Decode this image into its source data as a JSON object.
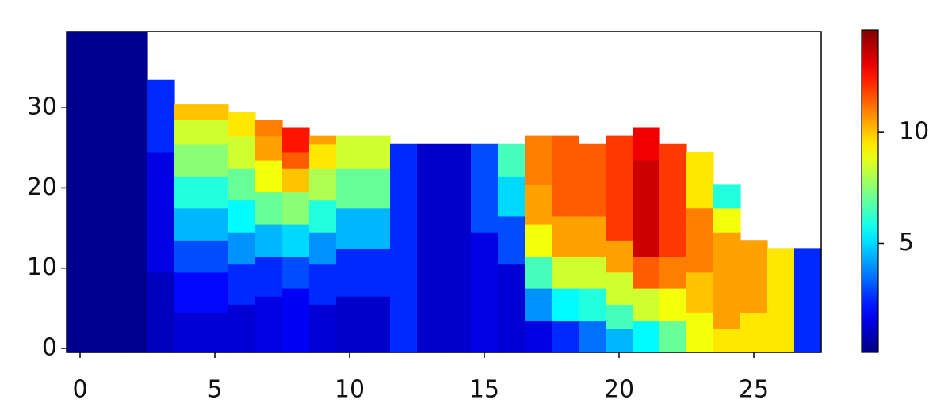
{
  "chart_data": {
    "type": "heatmap",
    "colormap": "jet",
    "x": [
      0,
      1,
      2,
      3,
      4,
      5,
      6,
      7,
      8,
      9,
      10,
      11,
      12,
      13,
      14,
      15,
      16,
      17,
      18,
      19,
      20,
      21,
      22,
      23,
      24,
      25,
      26,
      27
    ],
    "y": [
      0,
      1,
      2,
      3,
      4,
      5,
      6,
      7,
      8,
      9,
      10,
      11,
      12,
      13,
      14,
      15,
      16,
      17,
      18,
      19,
      20,
      21,
      22,
      23,
      24,
      25,
      26,
      27,
      28,
      29,
      30,
      31,
      32,
      33,
      34,
      35,
      36,
      37,
      38,
      39
    ],
    "columns": [
      [
        0.3,
        0.3,
        0.3,
        0.3,
        0.3,
        0.3,
        0.3,
        0.3,
        0.3,
        0.3,
        0.3,
        0.3,
        0.3,
        0.3,
        0.3,
        0.3,
        0.3,
        0.3,
        0.3,
        0.3,
        0.3,
        0.3,
        0.3,
        0.3,
        0.3,
        0.3,
        0.3,
        0.3,
        0.3,
        0.3,
        0.3,
        0.3,
        0.3,
        0.3,
        0.3,
        0.3,
        0.3,
        0.3,
        0.3,
        0.3
      ],
      [
        0.3,
        0.3,
        0.3,
        0.3,
        0.3,
        0.3,
        0.3,
        0.3,
        0.3,
        0.3,
        0.3,
        0.3,
        0.3,
        0.3,
        0.3,
        0.3,
        0.3,
        0.3,
        0.3,
        0.3,
        0.3,
        0.3,
        0.3,
        0.3,
        0.3,
        0.3,
        0.3,
        0.3,
        0.3,
        0.3,
        0.3,
        0.3,
        0.3,
        0.3,
        0.3,
        0.3,
        0.3,
        0.3,
        0.3,
        0.3
      ],
      [
        0.3,
        0.3,
        0.3,
        0.3,
        0.3,
        0.3,
        0.3,
        0.3,
        0.3,
        0.3,
        0.3,
        0.3,
        0.3,
        0.3,
        0.3,
        0.3,
        0.3,
        0.3,
        0.3,
        0.3,
        0.3,
        0.3,
        0.3,
        0.3,
        0.3,
        0.3,
        0.3,
        0.3,
        0.3,
        0.3,
        0.3,
        0.3,
        0.3,
        0.3,
        0.3,
        0.3,
        0.3,
        0.3,
        0.3,
        0.3
      ],
      [
        1,
        1,
        1,
        1,
        1,
        1,
        1,
        1,
        1,
        1,
        1.5,
        1.5,
        1.5,
        1.5,
        1.5,
        1.5,
        1.5,
        1.5,
        1.5,
        1.5,
        1.5,
        1.5,
        1.5,
        1.5,
        1.5,
        2.5,
        2.5,
        2.5,
        2.5,
        2.5,
        2.5,
        2.5,
        2.5,
        2.5
      ],
      [
        1.3,
        1.3,
        1.3,
        1.3,
        1.3,
        2,
        2,
        2,
        2,
        2,
        3,
        3,
        3,
        3,
        4.5,
        4.5,
        4.5,
        4.5,
        6,
        6,
        6,
        6,
        7.5,
        7.5,
        7.5,
        7.5,
        8.5,
        8.5,
        8.5,
        10,
        10
      ],
      [
        1.3,
        1.3,
        1.3,
        1.3,
        1.3,
        2,
        2,
        2,
        2,
        2,
        3,
        3,
        3,
        3,
        4.5,
        4.5,
        4.5,
        4.5,
        6,
        6,
        6,
        6,
        7.5,
        7.5,
        7.5,
        7.5,
        8.5,
        8.5,
        8.5,
        10,
        10
      ],
      [
        1.3,
        1.3,
        1.3,
        1.3,
        1.3,
        1.3,
        2.5,
        2.5,
        2.5,
        2.5,
        2.5,
        4,
        4,
        4,
        4,
        5.5,
        5.5,
        5.5,
        5.5,
        7,
        7,
        7,
        7,
        8.5,
        8.5,
        8.5,
        8.5,
        9.5,
        9.5,
        9.5
      ],
      [
        1.5,
        1.5,
        1.5,
        1.5,
        1.5,
        1.5,
        1.5,
        2.5,
        2.5,
        2.5,
        2.5,
        2.5,
        4.5,
        4.5,
        4.5,
        4.5,
        7,
        7,
        7,
        7,
        9,
        9,
        9,
        9,
        10.5,
        10.5,
        10.5,
        11,
        11
      ],
      [
        1.8,
        1.8,
        1.8,
        1.8,
        1.8,
        1.8,
        1.8,
        1.8,
        3,
        3,
        3,
        3,
        5,
        5,
        5,
        5,
        7.5,
        7.5,
        7.5,
        7.5,
        10,
        10,
        10,
        11.5,
        11.5,
        12.5,
        12.5,
        12.5
      ],
      [
        1.3,
        1.3,
        1.3,
        1.3,
        1.3,
        1.3,
        2.5,
        2.5,
        2.5,
        2.5,
        2.5,
        4,
        4,
        4,
        4,
        6,
        6,
        6,
        6,
        8,
        8,
        8,
        8,
        9.5,
        9.5,
        9.5,
        10.5
      ],
      [
        1.2,
        1.2,
        1.2,
        1.2,
        1.2,
        1.2,
        1.2,
        2.5,
        2.5,
        2.5,
        2.5,
        2.5,
        2.5,
        4.5,
        4.5,
        4.5,
        4.5,
        4.5,
        7,
        7,
        7,
        7,
        7,
        8.5,
        8.5,
        8.5,
        8.5
      ],
      [
        1.2,
        1.2,
        1.2,
        1.2,
        1.2,
        1.2,
        1.2,
        2.5,
        2.5,
        2.5,
        2.5,
        2.5,
        2.5,
        4.5,
        4.5,
        4.5,
        4.5,
        4.5,
        7,
        7,
        7,
        7,
        7,
        8.5,
        8.5,
        8.5,
        8.5
      ],
      [
        2.5,
        2.5,
        2.5,
        2.5,
        2.5,
        2.5,
        2.5,
        2.5,
        2.5,
        2.5,
        2.5,
        2.5,
        2.5,
        2.5,
        2.5,
        2.5,
        2.5,
        2.5,
        2.5,
        2.5,
        2.5,
        2.5,
        2.5,
        2.5,
        2.5,
        2.5
      ],
      [
        1.2,
        1.2,
        1.2,
        1.2,
        1.2,
        1.2,
        1.2,
        1.2,
        1.2,
        1.2,
        1.2,
        1.2,
        1.2,
        1.2,
        1.2,
        1.2,
        1.2,
        1.2,
        1.2,
        1.2,
        1.2,
        1.2,
        1.2,
        1.2,
        1.2,
        1.2
      ],
      [
        1.2,
        1.2,
        1.2,
        1.2,
        1.2,
        1.2,
        1.2,
        1.2,
        1.2,
        1.2,
        1.2,
        1.2,
        1.2,
        1.2,
        1.2,
        1.2,
        1.2,
        1.2,
        1.2,
        1.2,
        1.2,
        1.2,
        1.2,
        1.2,
        1.2,
        1.2
      ],
      [
        1.5,
        1.5,
        1.5,
        1.5,
        1.5,
        1.5,
        1.5,
        1.5,
        1.5,
        1.5,
        1.5,
        1.5,
        1.5,
        1.5,
        1.5,
        3,
        3,
        3,
        3,
        3,
        3,
        3,
        3,
        3,
        3,
        3
      ],
      [
        1.3,
        1.3,
        1.3,
        1.3,
        1.3,
        1.3,
        1.3,
        1.3,
        1.3,
        1.3,
        1.3,
        3,
        3,
        3,
        3,
        3,
        3,
        5,
        5,
        5,
        5,
        5,
        6.5,
        6.5,
        6.5,
        6.5
      ],
      [
        1.5,
        1.5,
        1.5,
        1.5,
        4,
        4,
        4,
        4,
        6.5,
        6.5,
        6.5,
        6.5,
        9,
        9,
        9,
        9,
        10.5,
        10.5,
        10.5,
        10.5,
        10.5,
        11,
        11,
        11,
        11,
        11,
        11
      ],
      [
        2.5,
        2.5,
        2.5,
        2.5,
        5.5,
        5.5,
        5.5,
        5.5,
        8.5,
        8.5,
        8.5,
        8.5,
        10.5,
        10.5,
        10.5,
        10.5,
        10.5,
        11.5,
        11.5,
        11.5,
        11.5,
        11.5,
        11.5,
        11.5,
        11.5,
        11.5,
        11.5
      ],
      [
        3.5,
        3.5,
        3.5,
        3.5,
        6,
        6,
        6,
        6,
        8.5,
        8.5,
        8.5,
        8.5,
        10.5,
        10.5,
        10.5,
        10.5,
        10.5,
        11.5,
        11.5,
        11.5,
        11.5,
        11.5,
        11.5,
        11.5,
        11.5,
        11.5
      ],
      [
        4.5,
        4.5,
        4.5,
        6.5,
        6.5,
        6.5,
        8.5,
        8.5,
        8.5,
        8.5,
        10.5,
        10.5,
        10.5,
        10.5,
        12,
        12,
        12,
        12,
        12,
        12,
        12,
        12,
        12,
        12,
        12,
        12,
        12
      ],
      [
        5.5,
        5.5,
        5.5,
        5.5,
        8.5,
        8.5,
        8.5,
        8.5,
        11.5,
        11.5,
        11.5,
        11.5,
        13.5,
        13.5,
        13.5,
        13.5,
        13.5,
        13.5,
        13.5,
        13.5,
        13.5,
        13.5,
        13.5,
        13.5,
        13,
        13,
        13,
        13
      ],
      [
        7,
        7,
        7,
        7,
        9,
        9,
        9,
        9,
        11,
        11,
        11,
        11,
        12,
        12,
        12,
        12,
        12,
        12,
        12,
        12,
        12,
        12,
        12,
        12,
        12,
        12
      ],
      [
        9,
        9,
        9,
        9,
        9,
        10,
        10,
        10,
        10,
        10,
        11,
        11,
        11,
        11,
        11,
        11,
        11,
        11,
        9.5,
        9.5,
        9.5,
        9.5,
        9.5,
        9.5,
        9.5
      ],
      [
        9.5,
        9.5,
        9.5,
        10.5,
        10.5,
        10.5,
        10.5,
        10.5,
        10.5,
        10.5,
        10.5,
        10.5,
        10.5,
        10.5,
        10.5,
        9,
        9,
        9,
        6,
        6,
        6
      ],
      [
        9.5,
        9.5,
        9.5,
        9.5,
        9.5,
        10.5,
        10.5,
        10.5,
        10.5,
        10.5,
        10.5,
        10.5,
        10.5,
        10.5
      ],
      [
        9.5,
        9.5,
        9.5,
        9.5,
        9.5,
        9.5,
        9.5,
        9.5,
        9.5,
        9.5,
        9.5,
        9.5,
        9.5
      ],
      [
        2.5,
        2.5,
        2.5,
        2.5,
        2.5,
        2.5,
        2.5,
        2.5,
        2.5,
        2.5,
        2.5,
        2.5,
        2.5
      ]
    ],
    "xlim": [
      -0.5,
      27.5
    ],
    "ylim": [
      -0.5,
      39.5
    ],
    "xticks": [
      0,
      5,
      10,
      15,
      20,
      25
    ],
    "yticks": [
      0,
      10,
      20,
      30
    ],
    "clim": [
      0.1,
      14.6
    ],
    "colorbar_ticks": [
      5,
      10
    ]
  }
}
